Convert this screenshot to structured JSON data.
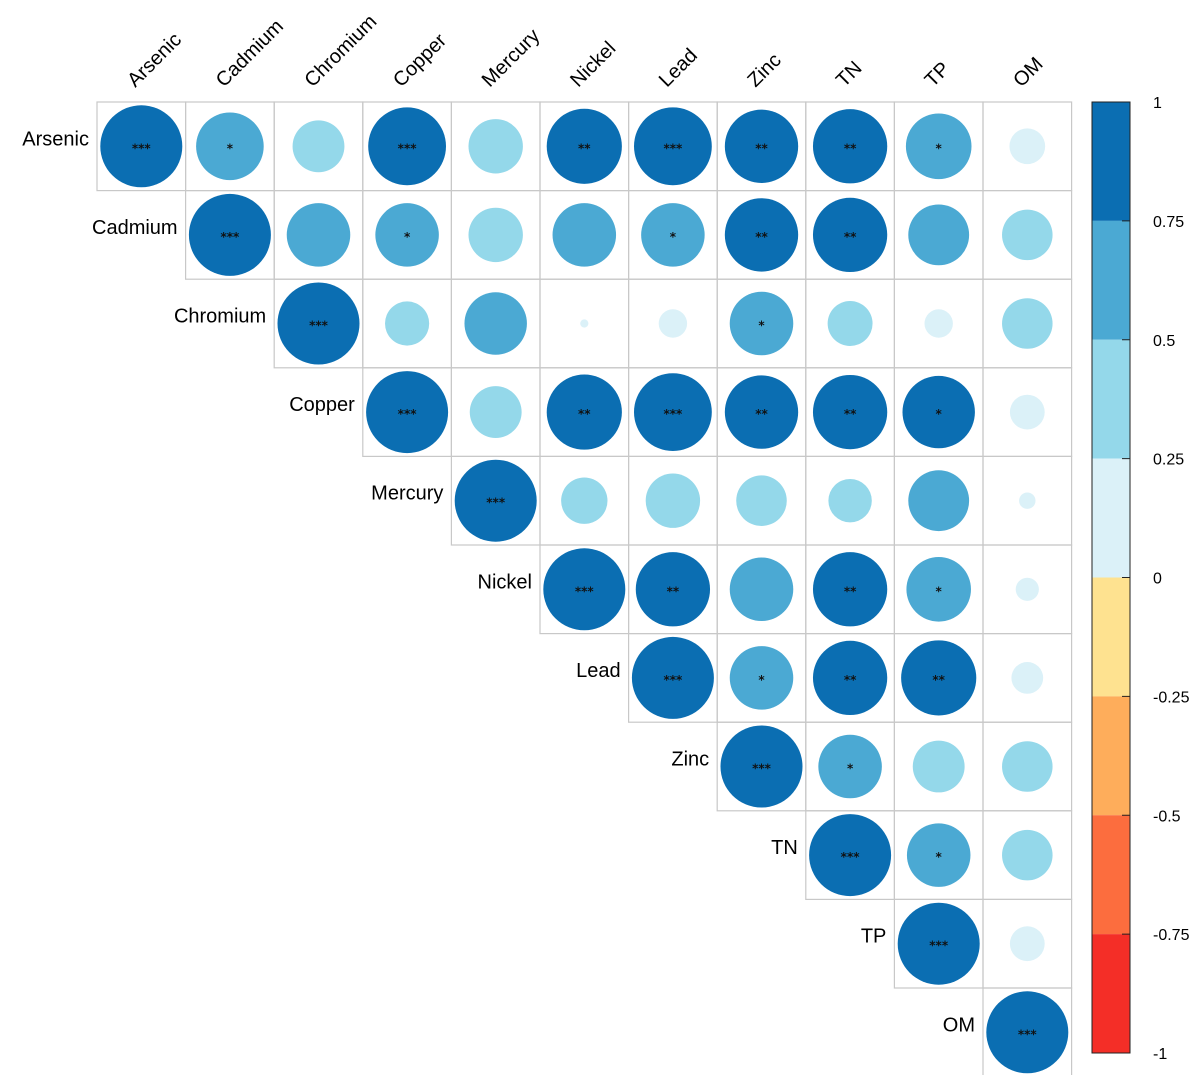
{
  "chart_data": {
    "type": "heatmap",
    "style": "correlation-matrix-circles-upper-triangle",
    "variables": [
      "Arsenic",
      "Cadmium",
      "Chromium",
      "Copper",
      "Mercury",
      "Nickel",
      "Lead",
      "Zinc",
      "TN",
      "TP",
      "OM"
    ],
    "cells": [
      {
        "row": "Arsenic",
        "col": "Arsenic",
        "r": 1.0,
        "sig": "***"
      },
      {
        "row": "Arsenic",
        "col": "Cadmium",
        "r": 0.68,
        "sig": "*"
      },
      {
        "row": "Arsenic",
        "col": "Chromium",
        "r": 0.4,
        "sig": ""
      },
      {
        "row": "Arsenic",
        "col": "Copper",
        "r": 0.9,
        "sig": "***"
      },
      {
        "row": "Arsenic",
        "col": "Mercury",
        "r": 0.44,
        "sig": ""
      },
      {
        "row": "Arsenic",
        "col": "Nickel",
        "r": 0.84,
        "sig": "**"
      },
      {
        "row": "Arsenic",
        "col": "Lead",
        "r": 0.9,
        "sig": "***"
      },
      {
        "row": "Arsenic",
        "col": "Zinc",
        "r": 0.8,
        "sig": "**"
      },
      {
        "row": "Arsenic",
        "col": "TN",
        "r": 0.82,
        "sig": "**"
      },
      {
        "row": "Arsenic",
        "col": "TP",
        "r": 0.64,
        "sig": "*"
      },
      {
        "row": "Arsenic",
        "col": "OM",
        "r": 0.19,
        "sig": ""
      },
      {
        "row": "Cadmium",
        "col": "Cadmium",
        "r": 1.0,
        "sig": "***"
      },
      {
        "row": "Cadmium",
        "col": "Chromium",
        "r": 0.6,
        "sig": ""
      },
      {
        "row": "Cadmium",
        "col": "Copper",
        "r": 0.6,
        "sig": "*"
      },
      {
        "row": "Cadmium",
        "col": "Mercury",
        "r": 0.44,
        "sig": ""
      },
      {
        "row": "Cadmium",
        "col": "Nickel",
        "r": 0.6,
        "sig": ""
      },
      {
        "row": "Cadmium",
        "col": "Lead",
        "r": 0.6,
        "sig": "*"
      },
      {
        "row": "Cadmium",
        "col": "Zinc",
        "r": 0.8,
        "sig": "**"
      },
      {
        "row": "Cadmium",
        "col": "TN",
        "r": 0.82,
        "sig": "**"
      },
      {
        "row": "Cadmium",
        "col": "TP",
        "r": 0.55,
        "sig": ""
      },
      {
        "row": "Cadmium",
        "col": "OM",
        "r": 0.38,
        "sig": ""
      },
      {
        "row": "Chromium",
        "col": "Chromium",
        "r": 1.0,
        "sig": "***"
      },
      {
        "row": "Chromium",
        "col": "Copper",
        "r": 0.29,
        "sig": ""
      },
      {
        "row": "Chromium",
        "col": "Mercury",
        "r": 0.58,
        "sig": ""
      },
      {
        "row": "Chromium",
        "col": "Nickel",
        "r": 0.01,
        "sig": ""
      },
      {
        "row": "Chromium",
        "col": "Lead",
        "r": 0.12,
        "sig": ""
      },
      {
        "row": "Chromium",
        "col": "Zinc",
        "r": 0.6,
        "sig": "*"
      },
      {
        "row": "Chromium",
        "col": "TN",
        "r": 0.3,
        "sig": ""
      },
      {
        "row": "Chromium",
        "col": "TP",
        "r": 0.12,
        "sig": ""
      },
      {
        "row": "Chromium",
        "col": "OM",
        "r": 0.38,
        "sig": ""
      },
      {
        "row": "Copper",
        "col": "Copper",
        "r": 1.0,
        "sig": "***"
      },
      {
        "row": "Copper",
        "col": "Mercury",
        "r": 0.4,
        "sig": ""
      },
      {
        "row": "Copper",
        "col": "Nickel",
        "r": 0.84,
        "sig": "**"
      },
      {
        "row": "Copper",
        "col": "Lead",
        "r": 0.9,
        "sig": "***"
      },
      {
        "row": "Copper",
        "col": "Zinc",
        "r": 0.8,
        "sig": "**"
      },
      {
        "row": "Copper",
        "col": "TN",
        "r": 0.82,
        "sig": "**"
      },
      {
        "row": "Copper",
        "col": "TP",
        "r": 0.78,
        "sig": "*"
      },
      {
        "row": "Copper",
        "col": "OM",
        "r": 0.18,
        "sig": ""
      },
      {
        "row": "Mercury",
        "col": "Mercury",
        "r": 1.0,
        "sig": "***"
      },
      {
        "row": "Mercury",
        "col": "Nickel",
        "r": 0.32,
        "sig": ""
      },
      {
        "row": "Mercury",
        "col": "Lead",
        "r": 0.44,
        "sig": ""
      },
      {
        "row": "Mercury",
        "col": "Zinc",
        "r": 0.38,
        "sig": ""
      },
      {
        "row": "Mercury",
        "col": "TN",
        "r": 0.28,
        "sig": ""
      },
      {
        "row": "Mercury",
        "col": "TP",
        "r": 0.55,
        "sig": ""
      },
      {
        "row": "Mercury",
        "col": "OM",
        "r": 0.04,
        "sig": ""
      },
      {
        "row": "Nickel",
        "col": "Nickel",
        "r": 1.0,
        "sig": "***"
      },
      {
        "row": "Nickel",
        "col": "Lead",
        "r": 0.82,
        "sig": "**"
      },
      {
        "row": "Nickel",
        "col": "Zinc",
        "r": 0.6,
        "sig": ""
      },
      {
        "row": "Nickel",
        "col": "TN",
        "r": 0.82,
        "sig": "**"
      },
      {
        "row": "Nickel",
        "col": "TP",
        "r": 0.62,
        "sig": "*"
      },
      {
        "row": "Nickel",
        "col": "OM",
        "r": 0.08,
        "sig": ""
      },
      {
        "row": "Lead",
        "col": "Lead",
        "r": 1.0,
        "sig": "***"
      },
      {
        "row": "Lead",
        "col": "Zinc",
        "r": 0.6,
        "sig": "*"
      },
      {
        "row": "Lead",
        "col": "TN",
        "r": 0.82,
        "sig": "**"
      },
      {
        "row": "Lead",
        "col": "TP",
        "r": 0.84,
        "sig": "**"
      },
      {
        "row": "Lead",
        "col": "OM",
        "r": 0.15,
        "sig": ""
      },
      {
        "row": "Zinc",
        "col": "Zinc",
        "r": 1.0,
        "sig": "***"
      },
      {
        "row": "Zinc",
        "col": "TN",
        "r": 0.6,
        "sig": "*"
      },
      {
        "row": "Zinc",
        "col": "TP",
        "r": 0.4,
        "sig": ""
      },
      {
        "row": "Zinc",
        "col": "OM",
        "r": 0.38,
        "sig": ""
      },
      {
        "row": "TN",
        "col": "TN",
        "r": 1.0,
        "sig": "***"
      },
      {
        "row": "TN",
        "col": "TP",
        "r": 0.6,
        "sig": "*"
      },
      {
        "row": "TN",
        "col": "OM",
        "r": 0.38,
        "sig": ""
      },
      {
        "row": "TP",
        "col": "TP",
        "r": 1.0,
        "sig": "***"
      },
      {
        "row": "TP",
        "col": "OM",
        "r": 0.18,
        "sig": ""
      },
      {
        "row": "OM",
        "col": "OM",
        "r": 1.0,
        "sig": "***"
      }
    ],
    "colorbar": {
      "ticks": [
        "1",
        "0.75",
        "0.5",
        "0.25",
        "0",
        "-0.25",
        "-0.5",
        "-0.75",
        "-1"
      ],
      "range": [
        -1,
        1
      ],
      "bins": [
        {
          "from": 0.75,
          "to": 1.0,
          "color": "#0B6EB2"
        },
        {
          "from": 0.5,
          "to": 0.75,
          "color": "#4BA9D3"
        },
        {
          "from": 0.25,
          "to": 0.5,
          "color": "#94D8EA"
        },
        {
          "from": 0.0,
          "to": 0.25,
          "color": "#DBF1F8"
        },
        {
          "from": -0.25,
          "to": 0.0,
          "color": "#FEE290"
        },
        {
          "from": -0.5,
          "to": -0.25,
          "color": "#FEAD5B"
        },
        {
          "from": -0.75,
          "to": -0.5,
          "color": "#FC6D3E"
        },
        {
          "from": -1.0,
          "to": -0.75,
          "color": "#F42E27"
        }
      ]
    },
    "grid": true,
    "legend": "right"
  }
}
